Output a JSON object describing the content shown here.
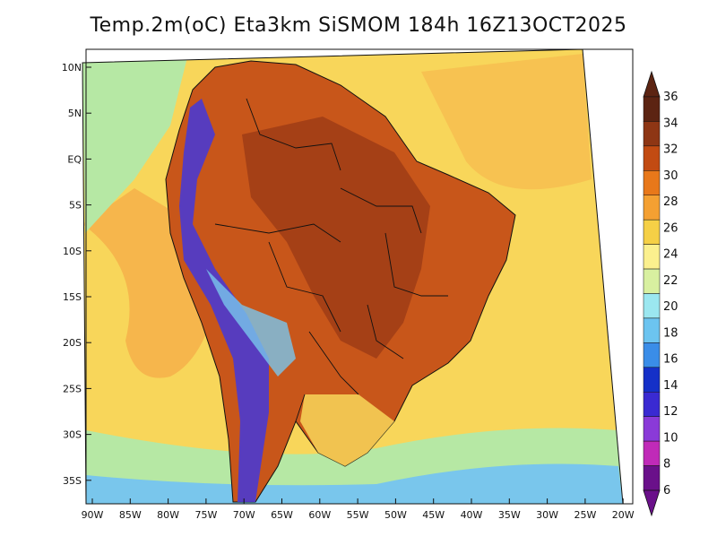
{
  "title": "Temp.2m(oC) Eta3km SiSMOM 184h 16Z13OCT2025",
  "map": {
    "region": "South America",
    "lat_ticks": [
      "10N",
      "5N",
      "EQ",
      "5S",
      "10S",
      "15S",
      "20S",
      "25S",
      "30S",
      "35S"
    ],
    "lon_ticks": [
      "90W",
      "85W",
      "80W",
      "75W",
      "70W",
      "65W",
      "60W",
      "55W",
      "50W",
      "45W",
      "40W",
      "35W",
      "30W",
      "25W",
      "20W"
    ]
  },
  "legend": {
    "labels": [
      "36",
      "34",
      "32",
      "30",
      "28",
      "26",
      "24",
      "22",
      "20",
      "18",
      "16",
      "14",
      "12",
      "10",
      "8",
      "6"
    ],
    "colors": [
      "#5c2412",
      "#8e3614",
      "#c24b12",
      "#e8781a",
      "#f4a032",
      "#f5d046",
      "#fbf08e",
      "#d8f0a0",
      "#9be7f0",
      "#6cc4f0",
      "#3a8de8",
      "#1530c8",
      "#3a2ad2",
      "#8a3ad8",
      "#c02ab8",
      "#6a108a"
    ]
  },
  "colors": {
    "ocean_warm": "#f5b24a",
    "ocean_mild": "#f8d65a",
    "ocean_cool": "#b6e8a4",
    "ocean_cold": "#79c6ec",
    "land_hot": "#c8561a",
    "land_very_hot": "#9a3a15",
    "andes_cold": "#4a3ad0",
    "border": "#111111"
  }
}
